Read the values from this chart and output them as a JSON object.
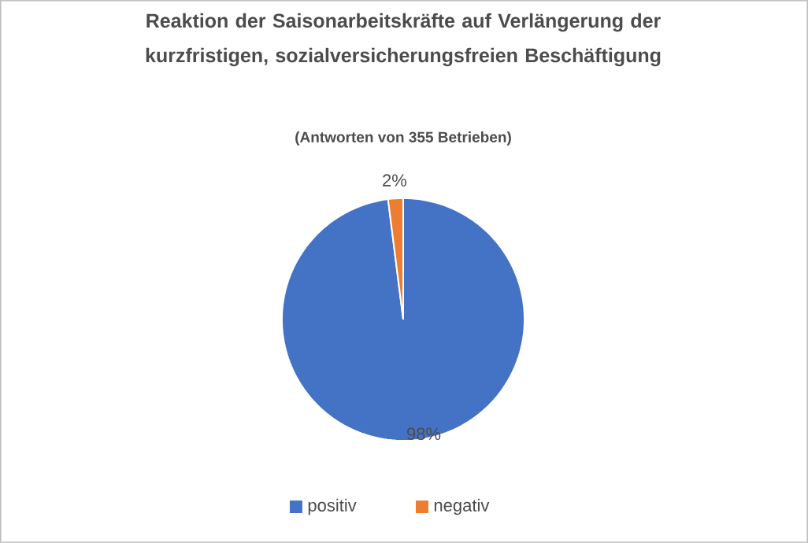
{
  "chart_data": {
    "type": "pie",
    "title": "Reaktion der Saisonarbeitskräfte auf Verlängerung der kurzfristigen, sozialversicherungsfreien Beschäftigung",
    "subtitle": "(Antworten von 355 Betrieben)",
    "categories": [
      "positiv",
      "negativ"
    ],
    "values": [
      98,
      2
    ],
    "colors": [
      "#4472c4",
      "#ed7d31"
    ],
    "value_labels": [
      "98%",
      "2%"
    ],
    "legend": "bottom"
  }
}
